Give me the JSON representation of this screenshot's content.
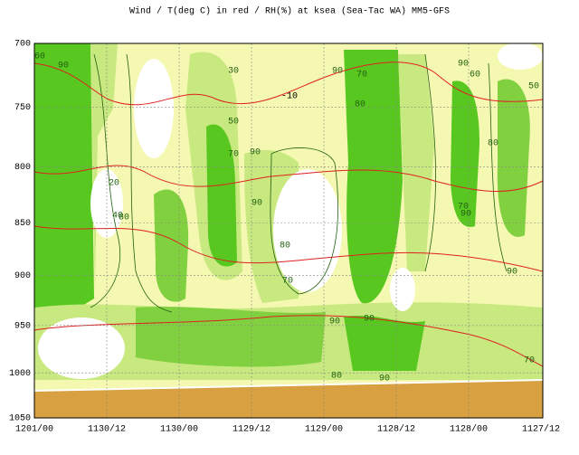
{
  "chart_data": {
    "type": "contour",
    "title": "Wind / T(deg C) in red / RH(%) at ksea (Sea-Tac WA)  MM5-GFS",
    "categories": [
      "1201/00",
      "1130/12",
      "1130/00",
      "1129/12",
      "1129/00",
      "1128/12",
      "1128/00",
      "1127/12"
    ],
    "ylim": [
      700,
      1050
    ],
    "yticks": [
      700,
      750,
      800,
      850,
      900,
      950,
      1000,
      1050
    ],
    "log_scale": true,
    "y_inverted": true,
    "grid": true,
    "annotations": [
      "60",
      "90",
      "30",
      "50",
      "90",
      "70",
      "-10",
      "90",
      "80",
      "70",
      "90",
      "60",
      "50",
      "80",
      "20",
      "40",
      "80",
      "90",
      "80",
      "70",
      "90",
      "90",
      "70",
      "90",
      "90",
      "80",
      "90",
      "70"
    ]
  }
}
